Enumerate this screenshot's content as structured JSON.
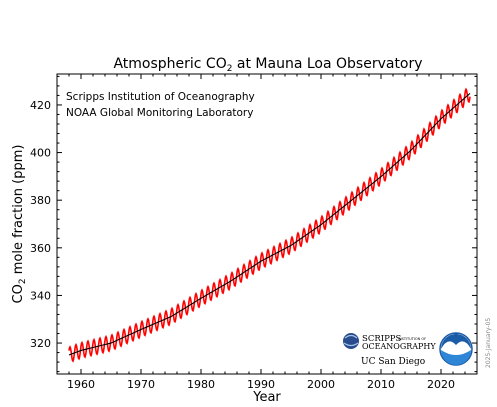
{
  "chart_data": {
    "type": "line",
    "title": {
      "main": "Atmospheric CO",
      "sub": "2",
      "rest": " at Mauna Loa Observatory"
    },
    "xlabel": "Year",
    "ylabel": {
      "main": "CO",
      "sub": "2",
      "rest": " mole fraction (ppm)"
    },
    "xlim": [
      1956,
      2026
    ],
    "ylim": [
      307,
      433
    ],
    "x_ticks": [
      1960,
      1970,
      1980,
      1990,
      2000,
      2010,
      2020
    ],
    "y_ticks": [
      320,
      340,
      360,
      380,
      400,
      420
    ],
    "grid": false,
    "annotations": [
      "Scripps Institution of Oceanography",
      "NOAA Global Monitoring Laboratory"
    ],
    "date_stamp": "2025-January-05",
    "series": [
      {
        "style": "monthly",
        "color": "#ff0000",
        "x": [
          1958,
          1960,
          1965,
          1970,
          1975,
          1980,
          1985,
          1990,
          1995,
          2000,
          2005,
          2010,
          2015,
          2020,
          2024.9
        ],
        "y": [
          315.0,
          316.9,
          320.0,
          325.7,
          331.1,
          338.8,
          346.1,
          354.4,
          361.0,
          369.7,
          379.8,
          389.9,
          401.0,
          414.2,
          425.0
        ],
        "seasonal_amplitude": 3.2
      },
      {
        "style": "trend",
        "color": "#000000",
        "x": [
          1958,
          1960,
          1965,
          1970,
          1975,
          1980,
          1985,
          1990,
          1995,
          2000,
          2005,
          2010,
          2015,
          2020,
          2024.9
        ],
        "y": [
          315.0,
          316.9,
          320.0,
          325.7,
          331.1,
          338.8,
          346.1,
          354.4,
          361.0,
          369.7,
          379.8,
          389.9,
          401.0,
          414.2,
          425.0
        ]
      }
    ]
  },
  "logos": {
    "scripps_line1": "SCRIPPS",
    "scripps_small": "INSTITUTION OF",
    "scripps_line2": "OCEANOGRAPHY",
    "ucsd": "UC San Diego",
    "noaa": "NOAA"
  },
  "colors": {
    "monthly": "#ff0000",
    "trend": "#000000",
    "noaa_blue": "#1a5ca8",
    "scripps_blue": "#2a4c8c"
  }
}
